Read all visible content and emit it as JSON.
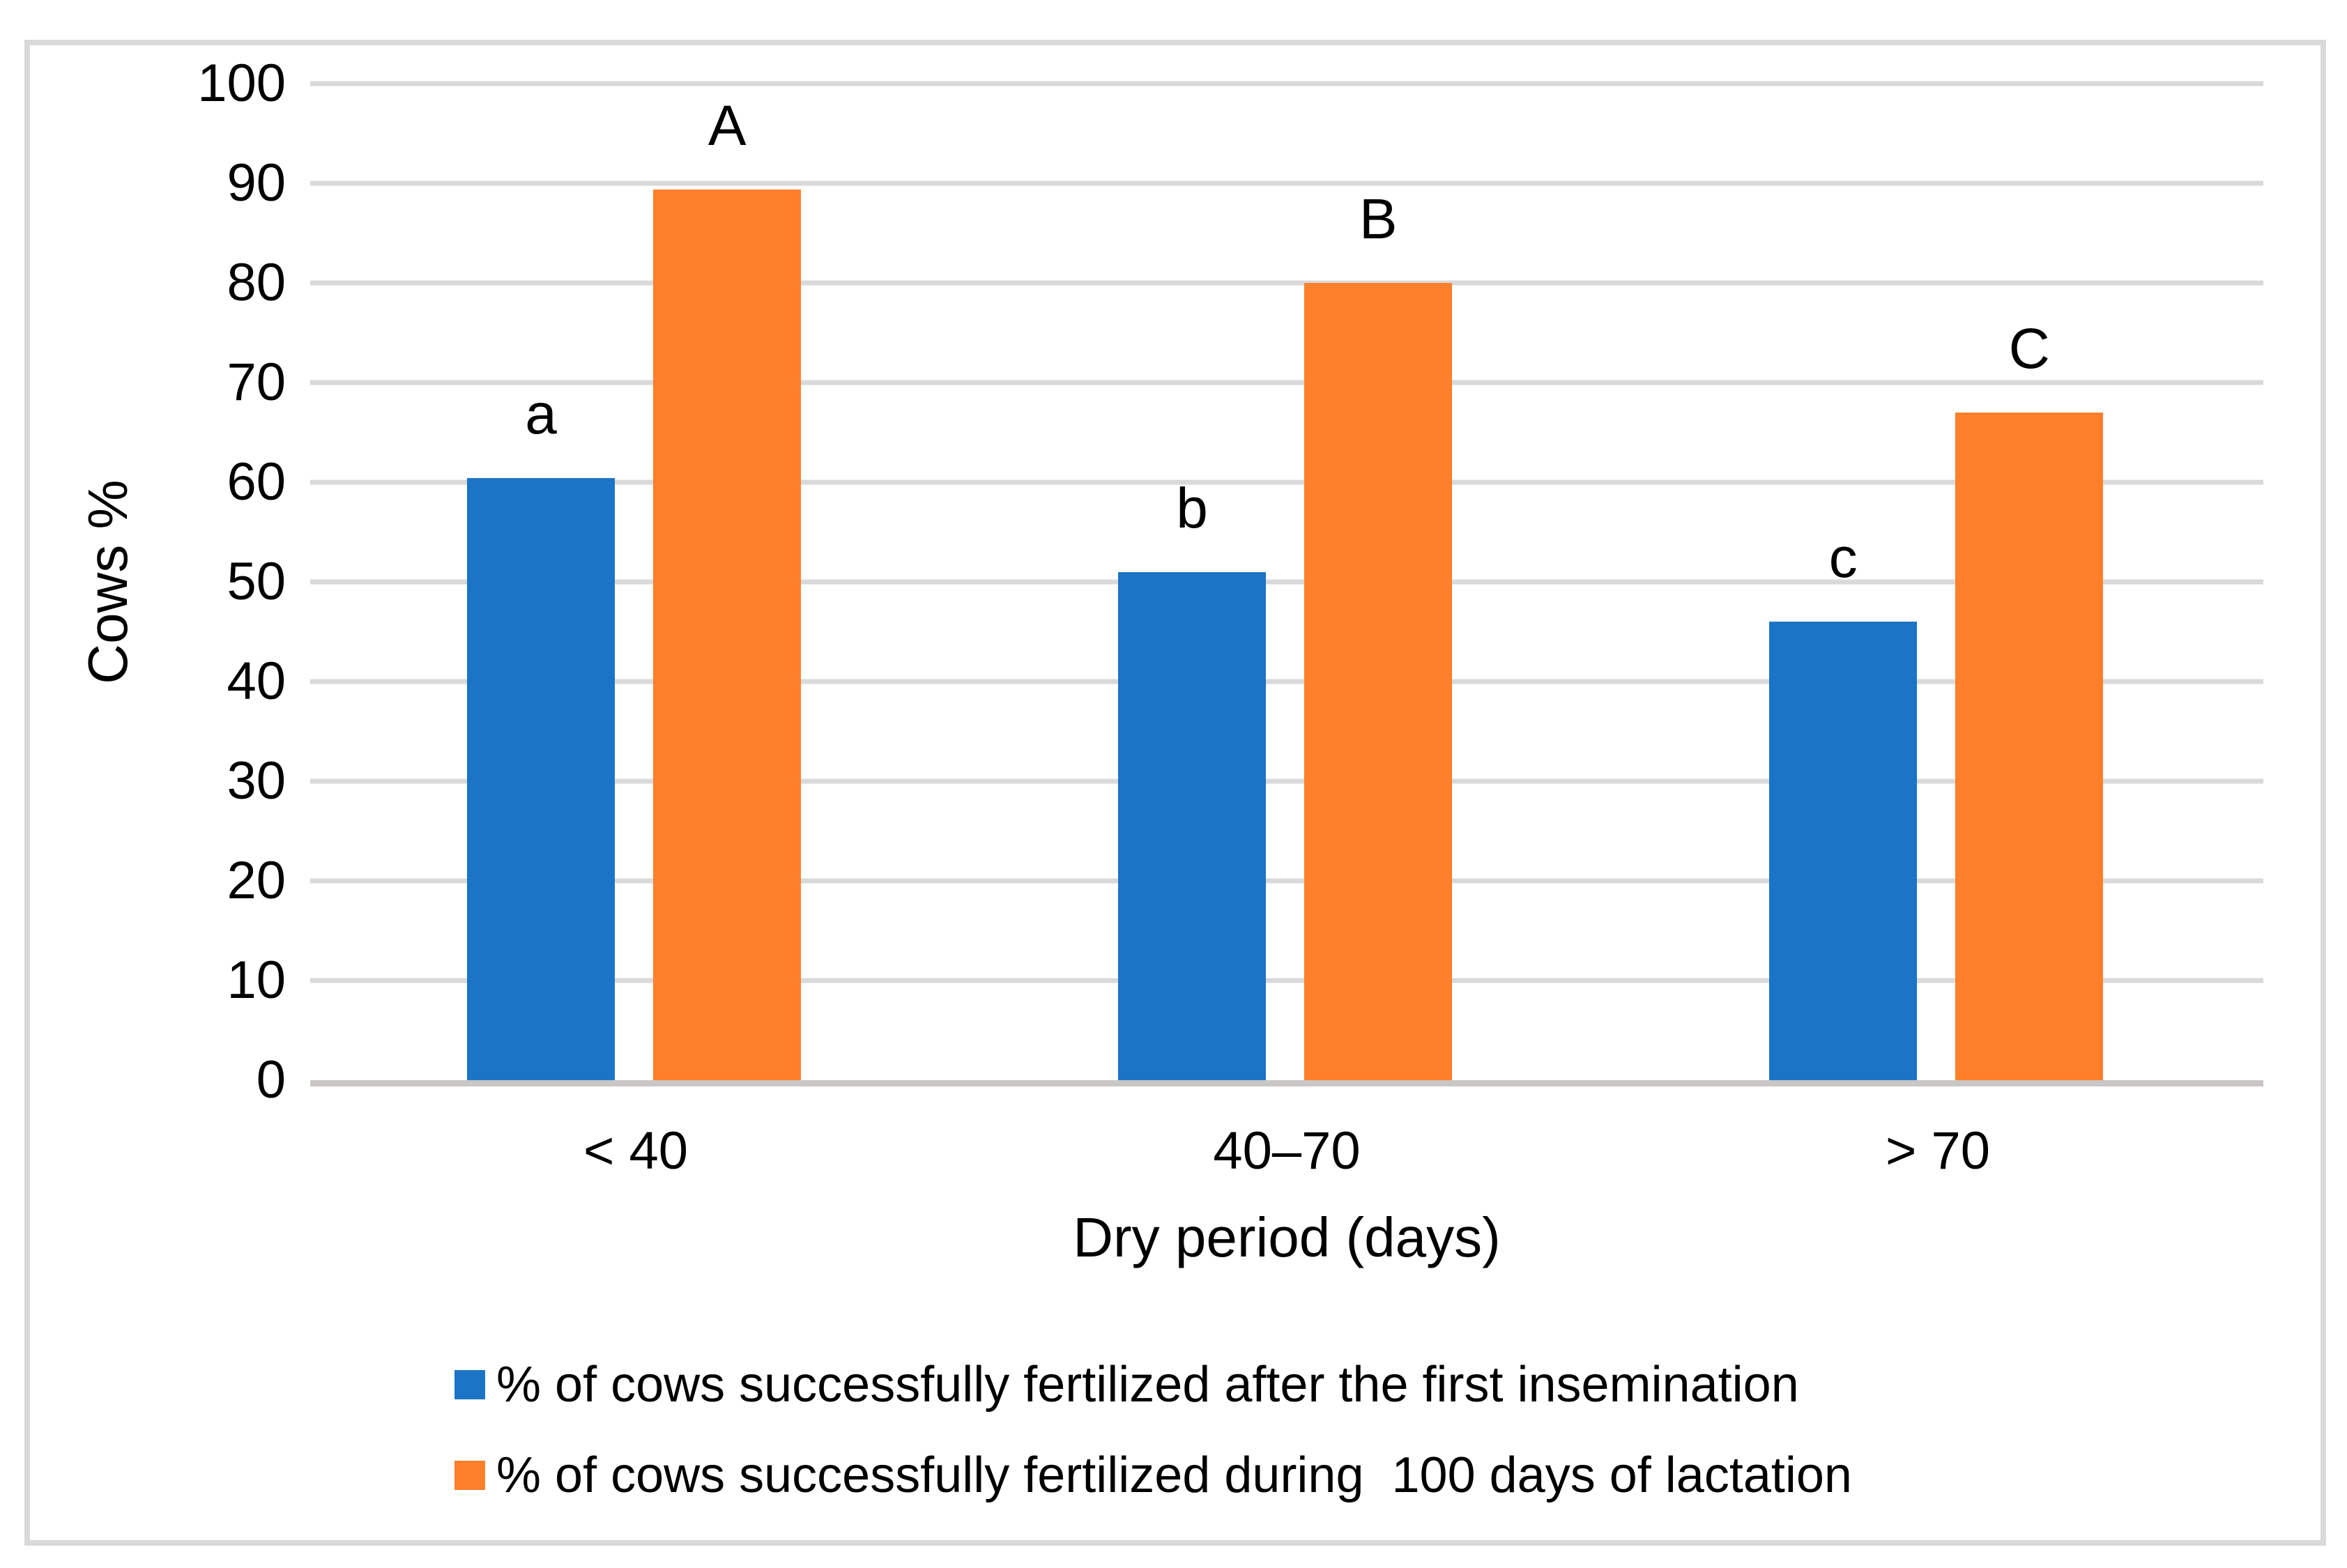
{
  "chart_data": {
    "type": "bar",
    "title": "",
    "categories": [
      "< 40",
      "40–70",
      "> 70"
    ],
    "series": [
      {
        "name": "% of cows successfully fertilized after the first insemination",
        "color": "#1B74C5",
        "values": [
          60.4,
          51,
          46
        ],
        "point_labels": [
          "a",
          "b",
          "c"
        ]
      },
      {
        "name": "% of cows successfully fertilized during  100 days of lactation",
        "color": "#FF7F2A",
        "values": [
          89.4,
          80,
          67
        ],
        "point_labels": [
          "A",
          "B",
          "C"
        ]
      }
    ],
    "xlabel": "Dry period (days)",
    "ylabel": "Cows %",
    "ylim": [
      0,
      100
    ],
    "yticks": [
      0,
      10,
      20,
      30,
      40,
      50,
      60,
      70,
      80,
      90,
      100
    ],
    "grid": true,
    "legend_position": "bottom-left",
    "gridline_color": "#D9D9D9",
    "baseline_color": "#C9C6C6",
    "frame_border_color": "#D9D9D9",
    "text_color": "#000000",
    "background_color": "#FFFFFF"
  }
}
